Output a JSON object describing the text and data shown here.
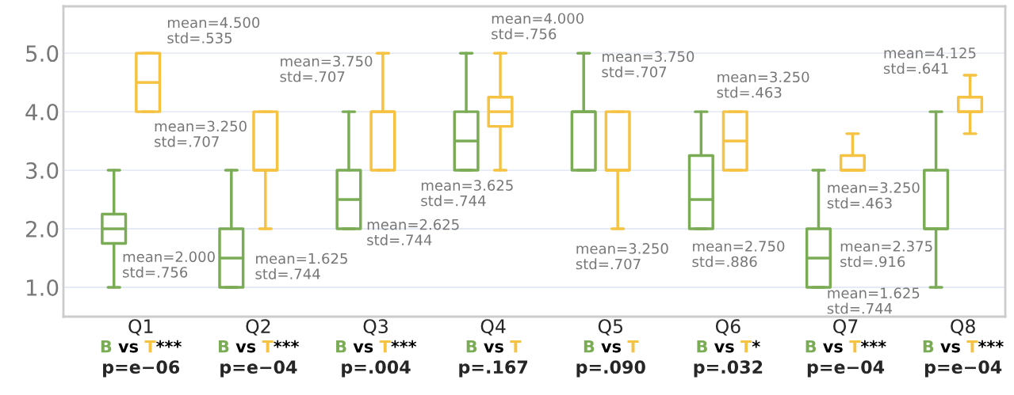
{
  "chart_data": {
    "type": "box",
    "categories": [
      "Q1",
      "Q2",
      "Q3",
      "Q4",
      "Q5",
      "Q6",
      "Q7",
      "Q8"
    ],
    "ylim": [
      0.5,
      5.8
    ],
    "yticks": [
      {
        "value": 1,
        "label": "1.0"
      },
      {
        "value": 2,
        "label": "2.0"
      },
      {
        "value": 3,
        "label": "3.0"
      },
      {
        "value": 4,
        "label": "4.0"
      },
      {
        "value": 5,
        "label": "5.0"
      }
    ],
    "grid": "y",
    "legend": false,
    "series": [
      {
        "color": "#7aab55",
        "boxes": [
          {
            "low": 1,
            "q1": 1.75,
            "median": 2,
            "q3": 2.25,
            "high": 3
          },
          {
            "low": 1,
            "q1": 1,
            "median": 1.5,
            "q3": 2,
            "high": 3
          },
          {
            "low": 2,
            "q1": 2,
            "median": 2.5,
            "q3": 3,
            "high": 4
          },
          {
            "low": 3,
            "q1": 3,
            "median": 3.5,
            "q3": 4,
            "high": 5
          },
          {
            "low": 3,
            "q1": 3,
            "median": 4,
            "q3": 4,
            "high": 5
          },
          {
            "low": 2,
            "q1": 2,
            "median": 2.5,
            "q3": 3.25,
            "high": 4
          },
          {
            "low": 1,
            "q1": 1,
            "median": 1.5,
            "q3": 2,
            "high": 3
          },
          {
            "low": 1,
            "q1": 2,
            "median": 2,
            "q3": 3,
            "high": 4
          }
        ]
      },
      {
        "color": "#f5c242",
        "boxes": [
          {
            "low": 4,
            "q1": 4,
            "median": 4.5,
            "q3": 5,
            "high": 5
          },
          {
            "low": 2,
            "q1": 3,
            "median": 3,
            "q3": 4,
            "high": 4
          },
          {
            "low": 3,
            "q1": 3,
            "median": 4,
            "q3": 4,
            "high": 5
          },
          {
            "low": 3,
            "q1": 3.75,
            "median": 4,
            "q3": 4.25,
            "high": 5
          },
          {
            "low": 2,
            "q1": 3,
            "median": 3,
            "q3": 4,
            "high": 4
          },
          {
            "low": 3,
            "q1": 3,
            "median": 3.5,
            "q3": 4,
            "high": 4
          },
          {
            "low": 3,
            "q1": 3,
            "median": 3,
            "q3": 3.25,
            "high": 3.625
          },
          {
            "low": 3.625,
            "q1": 4,
            "median": 4,
            "q3": 4.25,
            "high": 4.625
          }
        ]
      }
    ],
    "annotations": [
      "B vs T***",
      "B vs T***",
      "B vs T***",
      "B vs T",
      "B vs T",
      "B vs T*",
      "B vs T***",
      "B vs T***",
      "p=e−06",
      "p=e−04",
      "p=.004",
      "p=.167",
      "p=.090",
      "p=.032",
      "p=e−04",
      "p=e−04",
      "mean=2.000\nstd=.756",
      "mean=4.500\nstd=.535",
      "mean=1.625\nstd=.744",
      "mean=3.250\nstd=.707",
      "mean=2.625\nstd=.744",
      "mean=3.750\nstd=.707",
      "mean=3.625\nstd=.744",
      "mean=4.000\nstd=.756",
      "mean=3.750\nstd=.707",
      "mean=3.250\nstd=.707",
      "mean=2.750\nstd=.886",
      "mean=3.250\nstd=.463",
      "mean=1.625\nstd=.744",
      "mean=3.250\nstd=.463",
      "mean=2.375\nstd=.916",
      "mean=4.125\nstd=.641"
    ]
  }
}
